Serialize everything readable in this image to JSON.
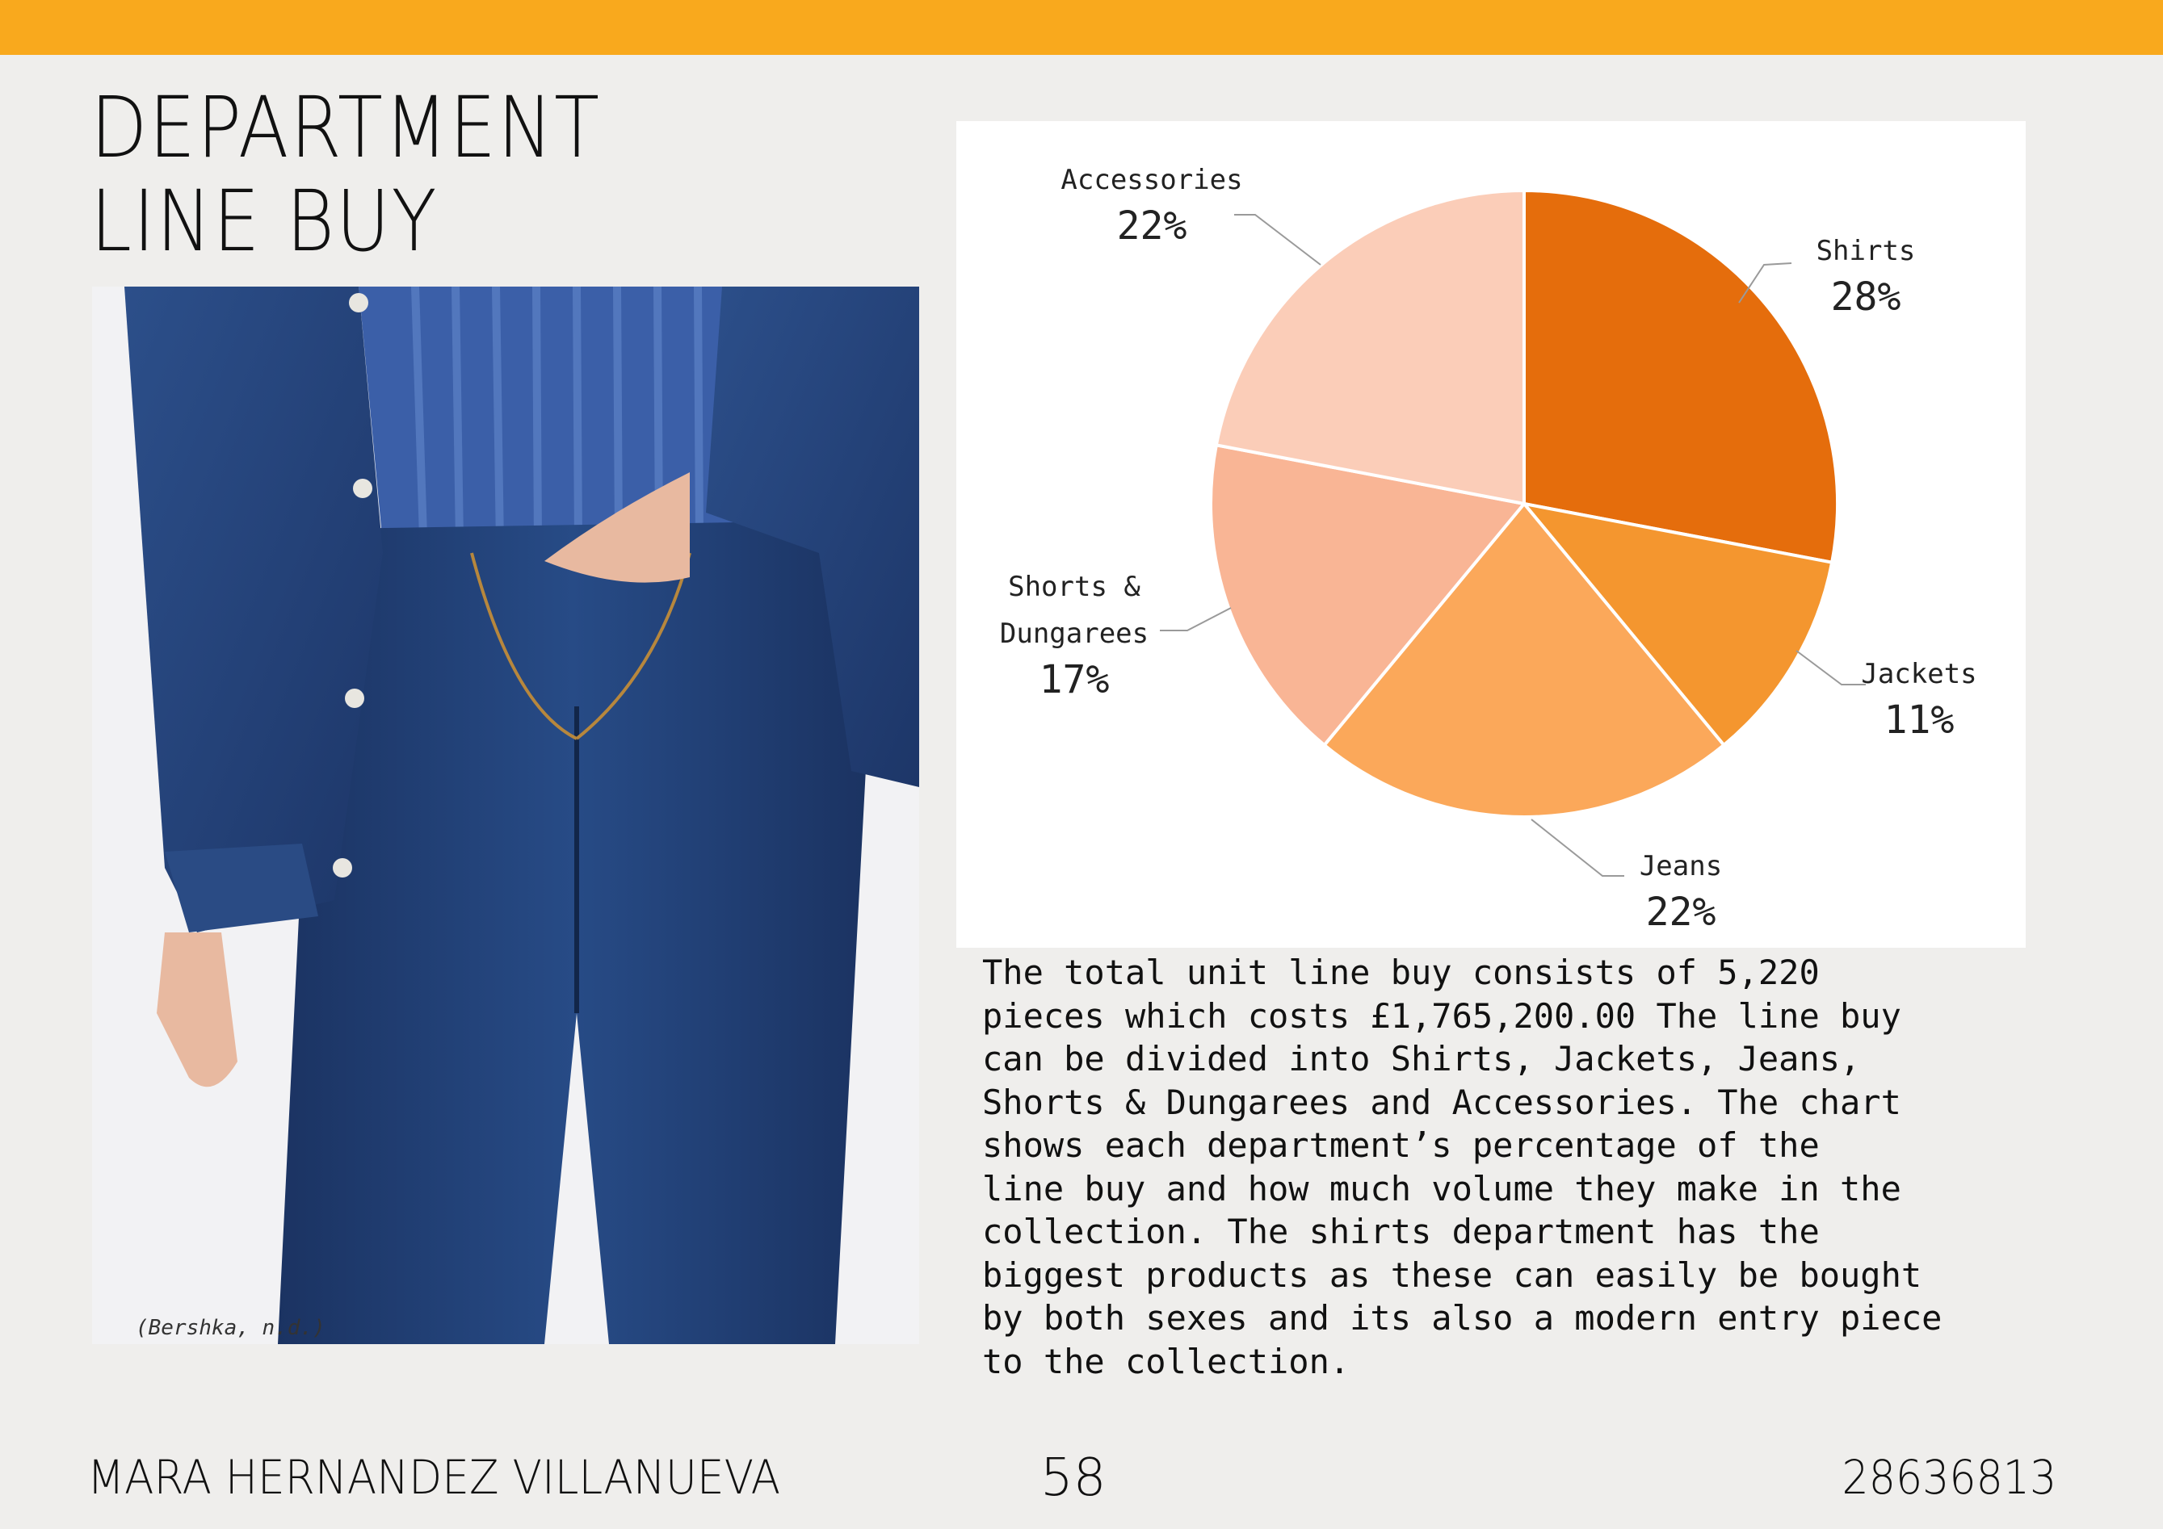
{
  "header": {
    "title_line1": "DEPARTMENT",
    "title_line2": "LINE BUY"
  },
  "photo": {
    "caption": "(Bershka, n.d.)"
  },
  "chart_data": {
    "type": "pie",
    "title": "",
    "slices": [
      {
        "name": "Shirts",
        "value": 28,
        "label": "28%",
        "color": "#e56d0c"
      },
      {
        "name": "Jackets",
        "value": 11,
        "label": "11%",
        "color": "#f4962f"
      },
      {
        "name": "Jeans",
        "value": 22,
        "label": "22%",
        "color": "#fba85a"
      },
      {
        "name": "Shorts & Dungarees",
        "value": 17,
        "label": "17%",
        "color": "#f9b595"
      },
      {
        "name": "Accessories",
        "value": 22,
        "label": "22%",
        "color": "#fbcdb8"
      }
    ]
  },
  "description": {
    "text": "The total unit line buy consists of 5,220\npieces which costs £1,765,200.00 The line buy\ncan be divided into Shirts, Jackets, Jeans,\nShorts & Dungarees and Accessories. The chart\nshows each department’s percentage of the\nline buy and how much volume they make in the\ncollection. The shirts department has the\nbiggest products as these can easily be bought\nby both sexes and its also a modern entry piece\nto the collection."
  },
  "footer": {
    "author": "MARA HERNANDEZ VILLANUEVA",
    "page_number": "58",
    "student_id": "28636813"
  },
  "colors": {
    "accent_bar": "#f9a91d",
    "page_background": "#efeeec"
  }
}
